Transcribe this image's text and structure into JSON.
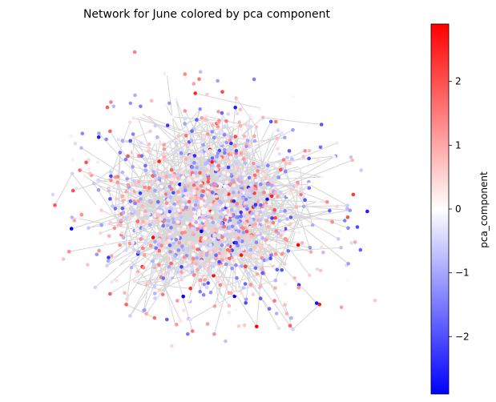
{
  "chart_data": {
    "type": "scatter",
    "subtype": "network-graph",
    "title": "Network for June colored by pca component",
    "colorbar": {
      "label": "pca_component",
      "colormap": "bwr",
      "range": [
        -2.9,
        2.9
      ],
      "ticks": [
        -2,
        -1,
        0,
        1,
        2
      ],
      "tick_labels": [
        "−2",
        "−1",
        "0",
        "1",
        "2"
      ],
      "low_color": "#0000ff",
      "mid_color": "#ffffff",
      "high_color": "#ff0000"
    },
    "edge_color": "#808080",
    "axes_visible": false,
    "grid": false,
    "approx_node_count": 1500
  }
}
